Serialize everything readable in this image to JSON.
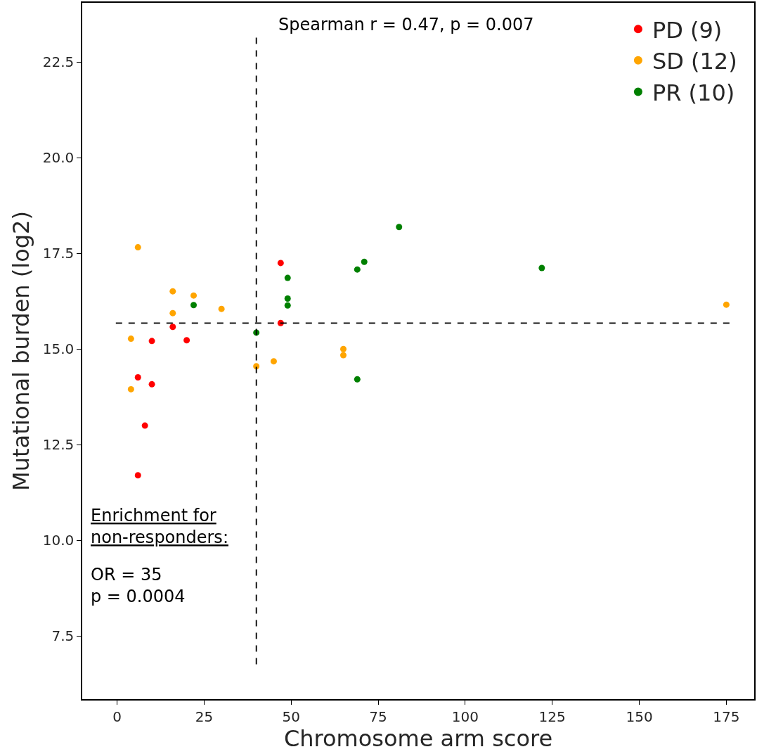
{
  "chart_data": {
    "type": "scatter",
    "xlabel": "Chromosome arm score",
    "ylabel": "Mutational burden (log2)",
    "xlim": [
      -10,
      183
    ],
    "ylim": [
      5.85,
      24.05
    ],
    "xticks": [
      0,
      25,
      50,
      75,
      100,
      125,
      150,
      175
    ],
    "yticks": [
      7.5,
      {
        "value": 10,
        "label": "10.0"
      },
      12.5,
      {
        "value": 15,
        "label": "15.0"
      },
      17.5,
      {
        "value": 20,
        "label": "20.0"
      },
      22.5
    ],
    "legend": "top right",
    "marker": "circle",
    "series": [
      {
        "name": "PD (9)",
        "color": "#ff0000",
        "x": [
          8,
          6,
          6,
          10,
          10,
          16,
          20,
          47,
          47
        ],
        "values": [
          13.0,
          11.7,
          14.26,
          14.08,
          15.21,
          15.58,
          15.23,
          17.25,
          15.68
        ]
      },
      {
        "name": "SD (12)",
        "color": "#ffa500",
        "x": [
          6,
          4,
          4,
          16,
          16,
          22,
          30,
          40,
          45,
          65,
          65,
          175
        ],
        "values": [
          17.66,
          15.27,
          13.95,
          16.51,
          15.94,
          16.4,
          16.05,
          14.55,
          14.68,
          15.0,
          14.84,
          16.16
        ]
      },
      {
        "name": "PR (10)",
        "color": "#008000",
        "x": [
          22,
          40,
          49,
          49,
          49,
          69,
          71,
          81,
          122,
          69
        ],
        "values": [
          16.15,
          15.43,
          16.86,
          16.32,
          16.14,
          17.08,
          17.28,
          18.19,
          17.12,
          14.21
        ]
      }
    ],
    "ref_lines": [
      {
        "axis": "y",
        "value": 15.68,
        "line_style": "dashed",
        "color": "#000000"
      },
      {
        "axis": "x",
        "value": 40,
        "line_style": "dashed",
        "color": "#000000"
      }
    ],
    "annotations": [
      "Spearman r = 0.47, p = 0.007",
      "Enrichment for\nnon-responders:",
      "OR = 35\np = 0.0004"
    ]
  }
}
